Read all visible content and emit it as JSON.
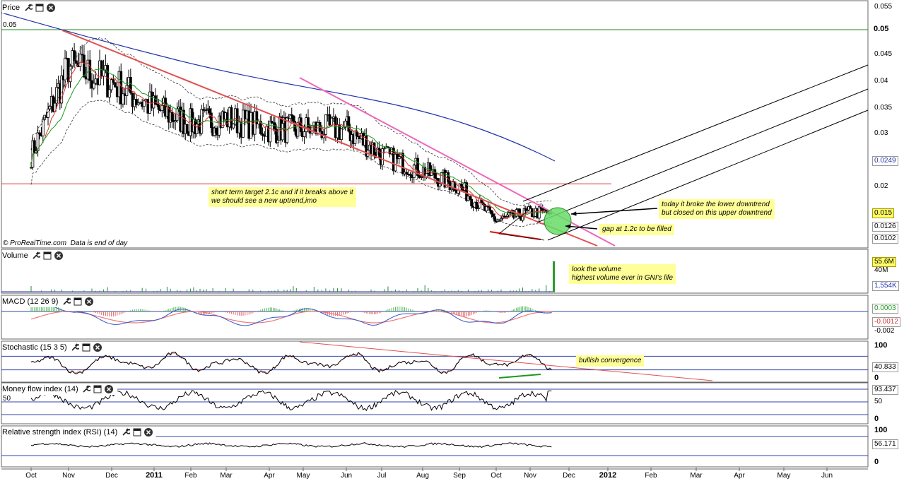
{
  "panels": {
    "price": {
      "title": "Price"
    },
    "volume": {
      "title": "Volume"
    },
    "macd": {
      "title": "MACD (12 26 9)"
    },
    "stochastic": {
      "title": "Stochastic (15 3 5)"
    },
    "mfi": {
      "title": "Money flow index (14)"
    },
    "rsi": {
      "title": "Relative strength index (RSI) (14)"
    }
  },
  "chart_data": {
    "type": "candlestick",
    "symbol_note": "GNI",
    "x_axis": {
      "labels": [
        "Oct",
        "Nov",
        "Dec",
        "2011",
        "Feb",
        "Mar",
        "Apr",
        "May",
        "Jun",
        "Jul",
        "Aug",
        "Sep",
        "Oct",
        "Nov",
        "Dec",
        "2012",
        "Feb",
        "Mar",
        "Apr",
        "May",
        "Jun"
      ],
      "bold": [
        "2011",
        "2012"
      ]
    },
    "price_axis": {
      "ticks": [
        "0.055",
        "0.05",
        "0.045",
        "0.04",
        "0.035",
        "0.03",
        "0.025",
        "0.02",
        "0.015",
        "0.01"
      ],
      "bold_ticks": [
        "0.05"
      ],
      "ylim": [
        0.009,
        0.056
      ],
      "current_tags": [
        "0.0249",
        "0.015",
        "0.0126",
        "0.0102"
      ],
      "left_label": "0.05"
    },
    "price_close_by_month": [
      {
        "month": "Oct 2010",
        "close": 0.026
      },
      {
        "month": "Nov 2010",
        "close": 0.043
      },
      {
        "month": "Dec 2010",
        "close": 0.04
      },
      {
        "month": "Jan 2011",
        "close": 0.035
      },
      {
        "month": "Feb 2011",
        "close": 0.032
      },
      {
        "month": "Mar 2011",
        "close": 0.033
      },
      {
        "month": "Apr 2011",
        "close": 0.031
      },
      {
        "month": "May 2011",
        "close": 0.031
      },
      {
        "month": "Jun 2011",
        "close": 0.031
      },
      {
        "month": "Jul 2011",
        "close": 0.026
      },
      {
        "month": "Aug 2011",
        "close": 0.023
      },
      {
        "month": "Sep 2011",
        "close": 0.02
      },
      {
        "month": "Oct 2011",
        "close": 0.0135
      },
      {
        "month": "Nov 2011",
        "close": 0.015
      }
    ],
    "horizontal_levels": [
      0.05,
      0.0205
    ],
    "volume_axis": {
      "ticks": [
        "40M"
      ],
      "tags": [
        "55.6M",
        "1,554K"
      ]
    },
    "macd_axis": {
      "ticks": [
        "-0.002"
      ],
      "tags": [
        "0.0003",
        "-0.0012"
      ]
    },
    "stochastic_axis": {
      "ticks": [
        "100",
        "0"
      ],
      "tags": [
        "40.833"
      ]
    },
    "mfi_axis": {
      "ticks": [
        "100",
        "50",
        "0"
      ],
      "left_label": "50",
      "tags": [
        "93.437"
      ]
    },
    "rsi_axis": {
      "ticks": [
        "100",
        "0"
      ],
      "tags": [
        "56.171"
      ]
    }
  },
  "annotations": {
    "target": {
      "line1": "short term target 2.1c and if it breaks above it",
      "line2": "we should see a new uptrend,imo"
    },
    "broke": {
      "line1": "today it broke the lower downtrend",
      "line2": "but closed on this upper downtrend"
    },
    "gap": "gap at 1.2c to be filled",
    "volume": {
      "line1": "look the volume",
      "line2": "highest volume ever in GNI's life"
    },
    "bullish": "bullish convergence"
  },
  "credit": {
    "source": "© ProRealTime.com",
    "note": "Data is end of day"
  },
  "colors": {
    "ma_red": "#e03030",
    "ma_green": "#1a9a1a",
    "ma_blue": "#2233aa",
    "trend_red": "#e05050",
    "trend_pink": "#ee66bb",
    "highlight": "#ffff99",
    "circle": "#66dd66"
  }
}
